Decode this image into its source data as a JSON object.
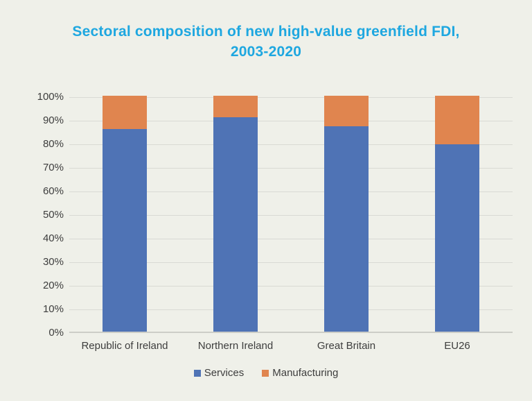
{
  "page": {
    "background": "#EFF0E9"
  },
  "title": {
    "text": "Sectoral composition of new high-value greenfield FDI,\n2003-2020",
    "color": "#1EA7E0"
  },
  "chart_data": {
    "type": "bar",
    "stacked": true,
    "title": "Sectoral composition of new high-value greenfield FDI, 2003-2020",
    "categories": [
      "Republic of Ireland",
      "Northern Ireland",
      "Great Britain",
      "EU26"
    ],
    "series": [
      {
        "name": "Services",
        "color": "#4F73B5",
        "values": [
          86,
          91,
          87,
          79.5
        ]
      },
      {
        "name": "Manufacturing",
        "color": "#E0854F",
        "values": [
          14,
          9,
          13,
          20.5
        ]
      }
    ],
    "xlabel": "",
    "ylabel": "",
    "ylim": [
      0,
      100
    ],
    "ytick_step": 10,
    "ytick_suffix": "%",
    "ytick_labels": [
      "0%",
      "10%",
      "20%",
      "30%",
      "40%",
      "50%",
      "60%",
      "70%",
      "80%",
      "90%",
      "100%"
    ],
    "grid": true,
    "gridline_color": "#d9dad4",
    "axis_text_color": "#3d3d3d",
    "legend_position": "bottom"
  }
}
